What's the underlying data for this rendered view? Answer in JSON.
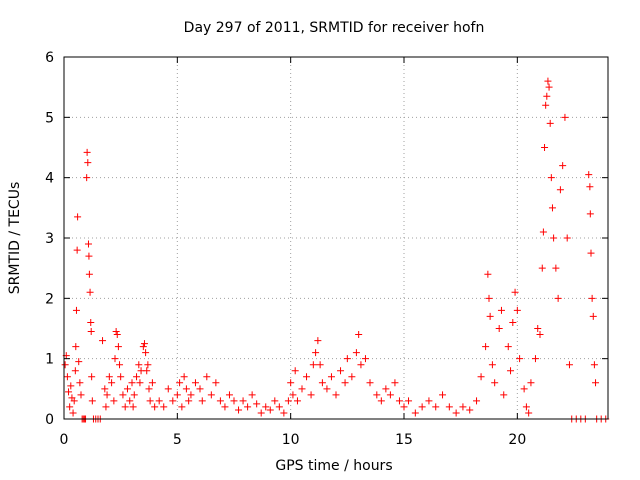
{
  "chart_data": {
    "type": "scatter",
    "title": "Day 297 of 2011, SRMTID for receiver hofn",
    "xlabel": "GPS time / hours",
    "ylabel": "SRMTID / TECUs",
    "xlim": [
      0,
      24
    ],
    "ylim": [
      0,
      6
    ],
    "x_ticks": [
      0,
      5,
      10,
      15,
      20
    ],
    "y_ticks": [
      0,
      1,
      2,
      3,
      4,
      5,
      6
    ],
    "grid": true,
    "marker": "plus",
    "series": [
      {
        "name": "SRMTID",
        "color": "#ff0000",
        "points": [
          [
            0.05,
            0.9
          ],
          [
            0.1,
            1.05
          ],
          [
            0.15,
            0.7
          ],
          [
            0.2,
            0.45
          ],
          [
            0.25,
            0.2
          ],
          [
            0.3,
            0.55
          ],
          [
            0.35,
            0.35
          ],
          [
            0.4,
            0.1
          ],
          [
            0.45,
            0.3
          ],
          [
            0.5,
            0.8
          ],
          [
            0.52,
            1.2
          ],
          [
            0.55,
            1.8
          ],
          [
            0.58,
            2.8
          ],
          [
            0.6,
            3.35
          ],
          [
            0.65,
            0.95
          ],
          [
            0.7,
            0.6
          ],
          [
            0.75,
            0.4
          ],
          [
            0.8,
            0.0
          ],
          [
            0.85,
            0.0
          ],
          [
            0.9,
            0.0
          ],
          [
            0.95,
            0.0
          ],
          [
            1.0,
            4.0
          ],
          [
            1.02,
            4.42
          ],
          [
            1.05,
            4.25
          ],
          [
            1.08,
            2.9
          ],
          [
            1.1,
            2.7
          ],
          [
            1.12,
            2.4
          ],
          [
            1.15,
            2.1
          ],
          [
            1.18,
            1.6
          ],
          [
            1.2,
            1.45
          ],
          [
            1.22,
            0.7
          ],
          [
            1.25,
            0.3
          ],
          [
            1.3,
            0.0
          ],
          [
            1.4,
            0.0
          ],
          [
            1.5,
            0.0
          ],
          [
            1.6,
            0.0
          ],
          [
            1.7,
            1.3
          ],
          [
            1.8,
            0.5
          ],
          [
            1.85,
            0.2
          ],
          [
            1.9,
            0.4
          ],
          [
            2.0,
            0.7
          ],
          [
            2.1,
            0.6
          ],
          [
            2.2,
            0.3
          ],
          [
            2.25,
            1.0
          ],
          [
            2.3,
            1.45
          ],
          [
            2.35,
            1.4
          ],
          [
            2.4,
            1.2
          ],
          [
            2.45,
            0.9
          ],
          [
            2.5,
            0.7
          ],
          [
            2.6,
            0.4
          ],
          [
            2.7,
            0.2
          ],
          [
            2.8,
            0.5
          ],
          [
            2.9,
            0.3
          ],
          [
            3.0,
            0.6
          ],
          [
            3.05,
            0.2
          ],
          [
            3.1,
            0.4
          ],
          [
            3.2,
            0.7
          ],
          [
            3.3,
            0.9
          ],
          [
            3.35,
            0.6
          ],
          [
            3.4,
            0.8
          ],
          [
            3.5,
            1.2
          ],
          [
            3.55,
            1.25
          ],
          [
            3.6,
            1.1
          ],
          [
            3.65,
            0.8
          ],
          [
            3.7,
            0.9
          ],
          [
            3.75,
            0.5
          ],
          [
            3.8,
            0.3
          ],
          [
            3.9,
            0.6
          ],
          [
            4.0,
            0.2
          ],
          [
            4.2,
            0.3
          ],
          [
            4.4,
            0.2
          ],
          [
            4.6,
            0.5
          ],
          [
            4.8,
            0.3
          ],
          [
            5.0,
            0.4
          ],
          [
            5.1,
            0.6
          ],
          [
            5.2,
            0.2
          ],
          [
            5.3,
            0.7
          ],
          [
            5.4,
            0.5
          ],
          [
            5.5,
            0.3
          ],
          [
            5.6,
            0.4
          ],
          [
            5.8,
            0.6
          ],
          [
            6.0,
            0.5
          ],
          [
            6.1,
            0.3
          ],
          [
            6.3,
            0.7
          ],
          [
            6.5,
            0.4
          ],
          [
            6.7,
            0.6
          ],
          [
            6.9,
            0.3
          ],
          [
            7.1,
            0.2
          ],
          [
            7.3,
            0.4
          ],
          [
            7.5,
            0.3
          ],
          [
            7.7,
            0.15
          ],
          [
            7.9,
            0.3
          ],
          [
            8.1,
            0.2
          ],
          [
            8.3,
            0.4
          ],
          [
            8.5,
            0.25
          ],
          [
            8.7,
            0.1
          ],
          [
            8.9,
            0.2
          ],
          [
            9.1,
            0.15
          ],
          [
            9.3,
            0.3
          ],
          [
            9.5,
            0.2
          ],
          [
            9.7,
            0.1
          ],
          [
            9.9,
            0.3
          ],
          [
            10.0,
            0.6
          ],
          [
            10.1,
            0.4
          ],
          [
            10.2,
            0.8
          ],
          [
            10.3,
            0.3
          ],
          [
            10.5,
            0.5
          ],
          [
            10.7,
            0.7
          ],
          [
            10.9,
            0.4
          ],
          [
            11.0,
            0.9
          ],
          [
            11.1,
            1.1
          ],
          [
            11.2,
            1.3
          ],
          [
            11.3,
            0.9
          ],
          [
            11.4,
            0.6
          ],
          [
            11.6,
            0.5
          ],
          [
            11.8,
            0.7
          ],
          [
            12.0,
            0.4
          ],
          [
            12.2,
            0.8
          ],
          [
            12.4,
            0.6
          ],
          [
            12.5,
            1.0
          ],
          [
            12.7,
            0.7
          ],
          [
            12.9,
            1.1
          ],
          [
            13.0,
            1.4
          ],
          [
            13.1,
            0.9
          ],
          [
            13.3,
            1.0
          ],
          [
            13.5,
            0.6
          ],
          [
            13.8,
            0.4
          ],
          [
            14.0,
            0.3
          ],
          [
            14.2,
            0.5
          ],
          [
            14.4,
            0.4
          ],
          [
            14.6,
            0.6
          ],
          [
            14.8,
            0.3
          ],
          [
            15.0,
            0.2
          ],
          [
            15.2,
            0.3
          ],
          [
            15.5,
            0.1
          ],
          [
            15.8,
            0.2
          ],
          [
            16.1,
            0.3
          ],
          [
            16.4,
            0.2
          ],
          [
            16.7,
            0.4
          ],
          [
            17.0,
            0.2
          ],
          [
            17.3,
            0.1
          ],
          [
            17.6,
            0.2
          ],
          [
            17.9,
            0.15
          ],
          [
            18.2,
            0.3
          ],
          [
            18.4,
            0.7
          ],
          [
            18.6,
            1.2
          ],
          [
            18.7,
            2.4
          ],
          [
            18.75,
            2.0
          ],
          [
            18.8,
            1.7
          ],
          [
            18.9,
            0.9
          ],
          [
            19.0,
            0.6
          ],
          [
            19.2,
            1.5
          ],
          [
            19.3,
            1.8
          ],
          [
            19.4,
            0.4
          ],
          [
            19.6,
            1.2
          ],
          [
            19.7,
            0.8
          ],
          [
            19.8,
            1.6
          ],
          [
            19.9,
            2.1
          ],
          [
            20.0,
            1.8
          ],
          [
            20.1,
            1.0
          ],
          [
            20.3,
            0.5
          ],
          [
            20.4,
            0.2
          ],
          [
            20.5,
            0.1
          ],
          [
            20.6,
            0.6
          ],
          [
            20.8,
            1.0
          ],
          [
            20.9,
            1.5
          ],
          [
            21.0,
            1.4
          ],
          [
            21.1,
            2.5
          ],
          [
            21.15,
            3.1
          ],
          [
            21.2,
            4.5
          ],
          [
            21.25,
            5.2
          ],
          [
            21.3,
            5.35
          ],
          [
            21.35,
            5.6
          ],
          [
            21.4,
            5.5
          ],
          [
            21.45,
            4.9
          ],
          [
            21.5,
            4.0
          ],
          [
            21.55,
            3.5
          ],
          [
            21.6,
            3.0
          ],
          [
            21.7,
            2.5
          ],
          [
            21.8,
            2.0
          ],
          [
            21.9,
            3.8
          ],
          [
            22.0,
            4.2
          ],
          [
            22.1,
            5.0
          ],
          [
            22.2,
            3.0
          ],
          [
            22.3,
            0.9
          ],
          [
            22.4,
            0.0
          ],
          [
            22.6,
            0.0
          ],
          [
            22.8,
            0.0
          ],
          [
            23.0,
            0.0
          ],
          [
            23.15,
            4.05
          ],
          [
            23.2,
            3.85
          ],
          [
            23.22,
            3.4
          ],
          [
            23.25,
            2.75
          ],
          [
            23.3,
            2.0
          ],
          [
            23.35,
            1.7
          ],
          [
            23.4,
            0.9
          ],
          [
            23.45,
            0.6
          ],
          [
            23.5,
            0.0
          ],
          [
            23.7,
            0.0
          ],
          [
            23.9,
            0.0
          ]
        ]
      }
    ]
  }
}
